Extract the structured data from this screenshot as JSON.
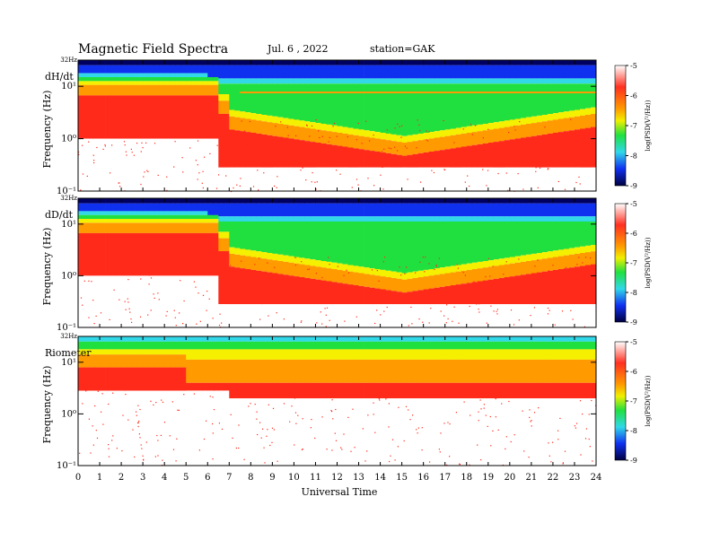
{
  "header": {
    "title": "Magnetic  Field  Spectra",
    "date": "Jul.  6  , 2022",
    "station": "station=GAK"
  },
  "chart_data": [
    {
      "type": "heatmap",
      "panel_label": "dH/dt",
      "ylabel": "Frequency  (Hz)",
      "top_freq_label": "32Hz",
      "y_ticks": [
        "10¹",
        "10⁰",
        "10⁻¹"
      ],
      "colorbar_label": "log(PSD(V²/Hz))",
      "colorbar_ticks": [
        "-5",
        "-6",
        "-7",
        "-8",
        "-9"
      ],
      "colorbar_range": [
        -9,
        -5
      ],
      "xlim": [
        0,
        24
      ],
      "x_ticks": [
        "0",
        "1",
        "2",
        "3",
        "4",
        "5",
        "6",
        "7",
        "8",
        "9",
        "10",
        "11",
        "12",
        "13",
        "14",
        "15",
        "16",
        "17",
        "18",
        "19",
        "20",
        "21",
        "22",
        "23",
        "24"
      ]
    },
    {
      "type": "heatmap",
      "panel_label": "dD/dt",
      "ylabel": "Frequency  (Hz)",
      "top_freq_label": "32Hz",
      "y_ticks": [
        "10¹",
        "10⁰",
        "10⁻¹"
      ],
      "colorbar_label": "log(PSD(V²/Hz))",
      "colorbar_ticks": [
        "-5",
        "-6",
        "-7",
        "-8",
        "-9"
      ],
      "colorbar_range": [
        -9,
        -5
      ],
      "xlim": [
        0,
        24
      ],
      "x_ticks": [
        "0",
        "1",
        "2",
        "3",
        "4",
        "5",
        "6",
        "7",
        "8",
        "9",
        "10",
        "11",
        "12",
        "13",
        "14",
        "15",
        "16",
        "17",
        "18",
        "19",
        "20",
        "21",
        "22",
        "23",
        "24"
      ]
    },
    {
      "type": "heatmap",
      "panel_label": "Riometer",
      "ylabel": "Frequency  (Hz)",
      "top_freq_label": "32Hz",
      "y_ticks": [
        "10¹",
        "10⁰",
        "10⁻¹"
      ],
      "colorbar_label": "log(PSD(V²/Hz))",
      "colorbar_ticks": [
        "-5",
        "-6",
        "-7",
        "-8",
        "-9"
      ],
      "colorbar_range": [
        -9,
        -5
      ],
      "xlim": [
        0,
        24
      ],
      "x_ticks": [
        "0",
        "1",
        "2",
        "3",
        "4",
        "5",
        "6",
        "7",
        "8",
        "9",
        "10",
        "11",
        "12",
        "13",
        "14",
        "15",
        "16",
        "17",
        "18",
        "19",
        "20",
        "21",
        "22",
        "23",
        "24"
      ]
    }
  ],
  "xlabel": "Universal  Time",
  "colors": {
    "white": "#ffffff",
    "red": "#ff2a1a",
    "orange": "#ff9a00",
    "yellow": "#f5f000",
    "green": "#20e040",
    "cyan": "#30d8e8",
    "blue": "#1030f0",
    "navy": "#000060"
  }
}
